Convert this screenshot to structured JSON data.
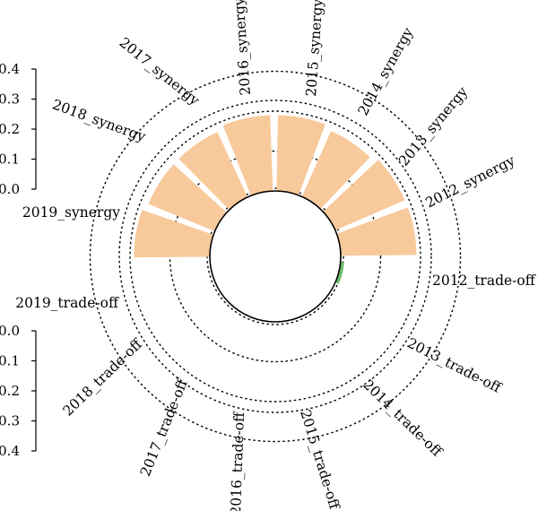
{
  "chart_data": {
    "type": "circular_bar",
    "series": [
      {
        "name": "synergy",
        "color": "#f8c99b",
        "categories": [
          "2012_synergy",
          "2013_synergy",
          "2014_synergy",
          "2015_synergy",
          "2016_synergy",
          "2017_synergy",
          "2018_synergy",
          "2019_synergy"
        ],
        "values": [
          0.19,
          0.19,
          0.18,
          0.19,
          0.19,
          0.18,
          0.18,
          0.19
        ]
      },
      {
        "name": "trade-off",
        "color": "#6cbf6c",
        "categories": [
          "2012_trade-off",
          "2013_trade-off",
          "2014_trade-off",
          "2015_trade-off",
          "2016_trade-off",
          "2017_trade-off",
          "2018_trade-off",
          "2019_trade-off"
        ],
        "values": [
          0.005,
          0,
          0,
          0,
          0,
          0,
          0,
          0
        ]
      }
    ],
    "axis_top": {
      "ticks": [
        "0.0",
        "0.1",
        "0.2",
        "0.3",
        "0.4"
      ],
      "range": [
        0,
        0.4
      ]
    },
    "axis_bottom": {
      "ticks": [
        "0.0",
        "0.1",
        "0.2",
        "0.3",
        "0.4"
      ],
      "range": [
        0,
        0.4
      ]
    },
    "grid": true
  }
}
